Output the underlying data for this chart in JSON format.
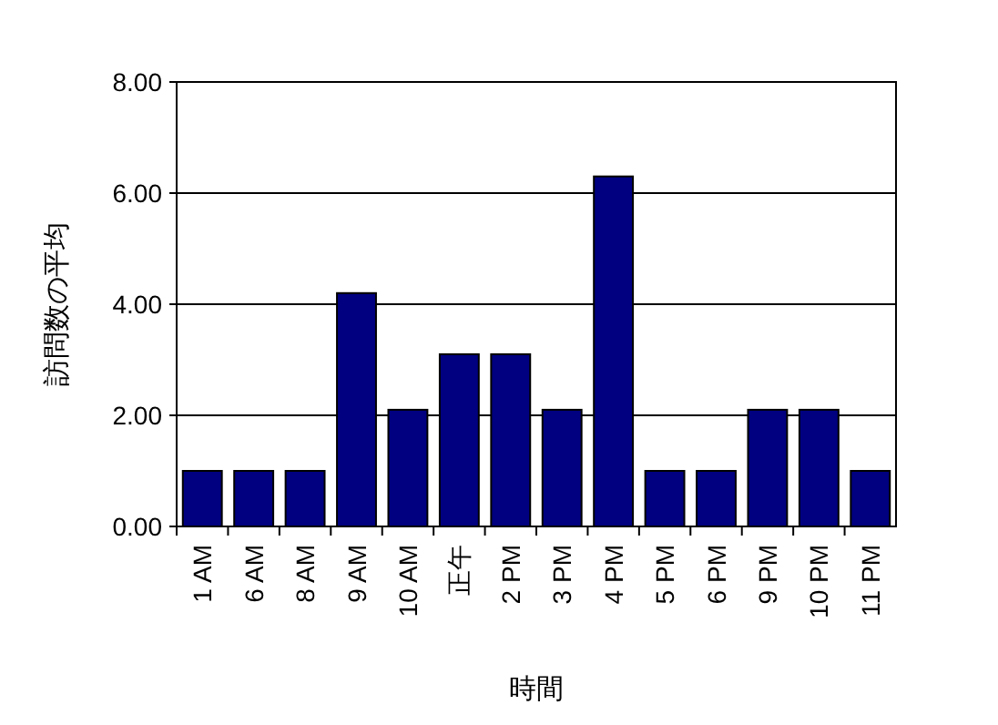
{
  "chart_data": {
    "type": "bar",
    "xlabel": "時間",
    "ylabel": "訪問数の平均",
    "categories": [
      "1 AM",
      "6 AM",
      "8 AM",
      "9 AM",
      "10 AM",
      "正午",
      "2 PM",
      "3 PM",
      "4 PM",
      "5 PM",
      "6 PM",
      "9 PM",
      "10 PM",
      "11 PM"
    ],
    "values": [
      1,
      1,
      1,
      4.2,
      2.1,
      3.1,
      3.1,
      2.1,
      6.3,
      1,
      1,
      2.1,
      2.1,
      1
    ],
    "color": "#000080",
    "ylim": [
      0,
      8
    ],
    "yticks": [
      {
        "value": 0,
        "label": "0.00"
      },
      {
        "value": 2,
        "label": "2.00"
      },
      {
        "value": 4,
        "label": "4.00"
      },
      {
        "value": 6,
        "label": "6.00"
      },
      {
        "value": 8,
        "label": "8.00"
      }
    ],
    "grid": "y"
  }
}
